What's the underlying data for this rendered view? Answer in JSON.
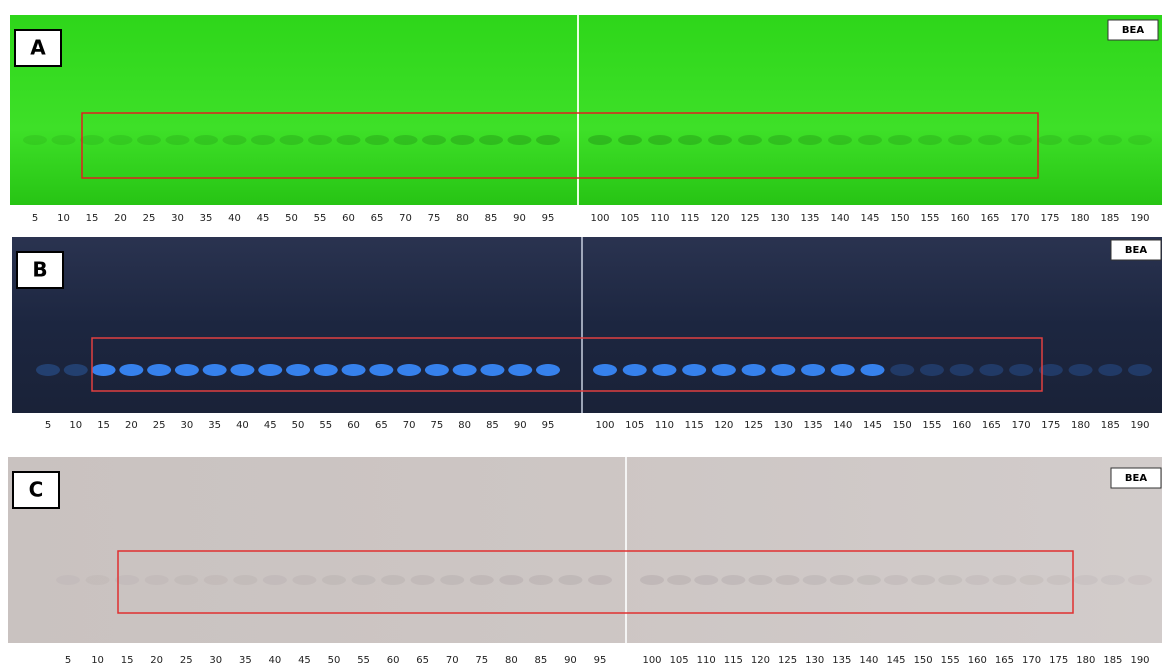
{
  "panels": [
    {
      "label": "A",
      "tag": "BEA",
      "lanes": [
        5,
        10,
        15,
        20,
        25,
        30,
        35,
        40,
        45,
        50,
        55,
        60,
        65,
        70,
        75,
        80,
        85,
        90,
        95,
        100,
        105,
        110,
        115,
        120,
        125,
        130,
        135,
        140,
        145,
        150,
        155,
        160,
        165,
        170,
        175,
        180,
        185,
        190
      ]
    },
    {
      "label": "B",
      "tag": "BEA",
      "lanes": [
        5,
        10,
        15,
        20,
        25,
        30,
        35,
        40,
        45,
        50,
        55,
        60,
        65,
        70,
        75,
        80,
        85,
        90,
        95,
        100,
        105,
        110,
        115,
        120,
        125,
        130,
        135,
        140,
        145,
        150,
        155,
        160,
        165,
        170,
        175,
        180,
        185,
        190
      ]
    },
    {
      "label": "C",
      "tag": "BEA",
      "lanes": [
        5,
        10,
        15,
        20,
        25,
        30,
        35,
        40,
        45,
        50,
        55,
        60,
        65,
        70,
        75,
        80,
        85,
        90,
        95,
        100,
        105,
        110,
        115,
        120,
        125,
        130,
        135,
        140,
        145,
        150,
        155,
        160,
        165,
        170,
        175,
        180,
        185,
        190
      ]
    }
  ]
}
